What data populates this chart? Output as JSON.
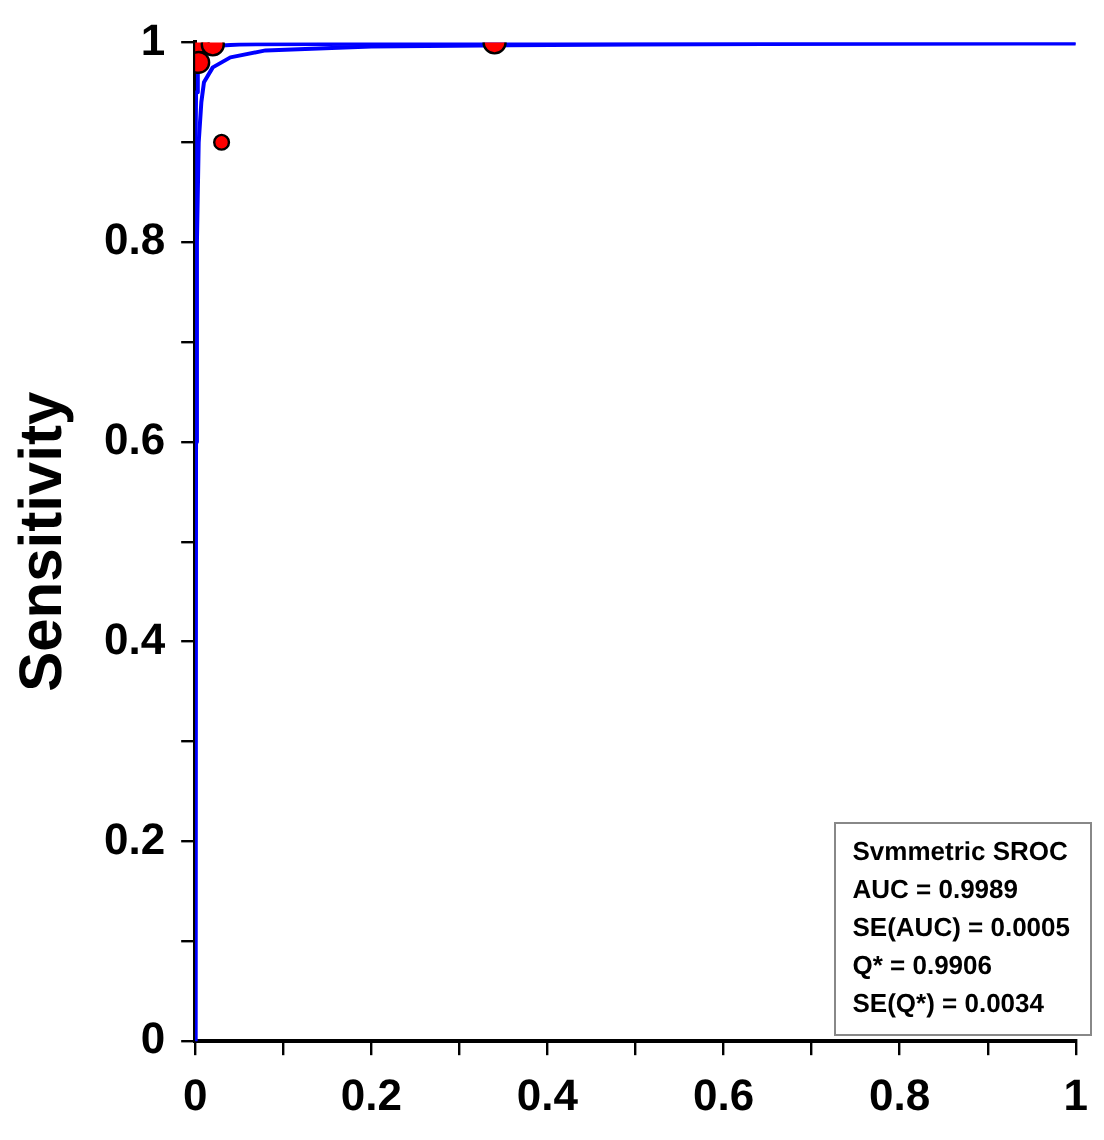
{
  "chart_data": {
    "type": "line",
    "ylabel": "Sensitivity",
    "xlim": [
      0,
      1
    ],
    "ylim": [
      0,
      1
    ],
    "xticks": [
      0,
      {
        "value": 0.1,
        "label": null
      },
      0.2,
      {
        "value": 0.3,
        "label": null
      },
      0.4,
      {
        "value": 0.5,
        "label": null
      },
      0.6,
      {
        "value": 0.7,
        "label": null
      },
      0.8,
      {
        "value": 0.9,
        "label": null
      },
      1
    ],
    "yticks": [
      0,
      {
        "value": 0.1,
        "label": null
      },
      0.2,
      {
        "value": 0.3,
        "label": null
      },
      0.4,
      {
        "value": 0.5,
        "label": null
      },
      0.6,
      {
        "value": 0.7,
        "label": null
      },
      0.8,
      {
        "value": 0.9,
        "label": null
      },
      1
    ],
    "grid": false,
    "legend": false,
    "marker": "none",
    "line_style": "solid",
    "series": [
      {
        "color": "#0000ff",
        "x": [
          0,
          0.001,
          0.002,
          0.004,
          0.007,
          0.01,
          0.02,
          0.04,
          0.08,
          0.2,
          0.5,
          1
        ],
        "values": [
          0,
          0.6,
          0.8,
          0.9,
          0.94,
          0.96,
          0.975,
          0.985,
          0.992,
          0.996,
          0.998,
          0.999
        ]
      },
      {
        "color": "#0000ff",
        "x": [
          0,
          0.0005,
          0.001,
          0.003,
          0.01,
          0.05,
          0.3,
          1
        ],
        "values": [
          0,
          0.9,
          0.95,
          0.99,
          0.996,
          0.998,
          0.999,
          1
        ]
      },
      {
        "type": "bubble",
        "color": "#ff0000",
        "marker": "circle",
        "x": [
          0.003,
          0.02,
          0.004,
          0.03,
          0.34
        ],
        "values": [
          1,
          0.998,
          0.98,
          0.9,
          1
        ],
        "sizes": [
          1,
          1,
          0.9,
          0.45,
          1
        ]
      }
    ],
    "annotations": [
      "Svmmetric SROC",
      "AUC = 0.9989",
      "SE(AUC) = 0.0005",
      "Q* = 0.9906",
      "SE(Q*) = 0.0034"
    ]
  }
}
